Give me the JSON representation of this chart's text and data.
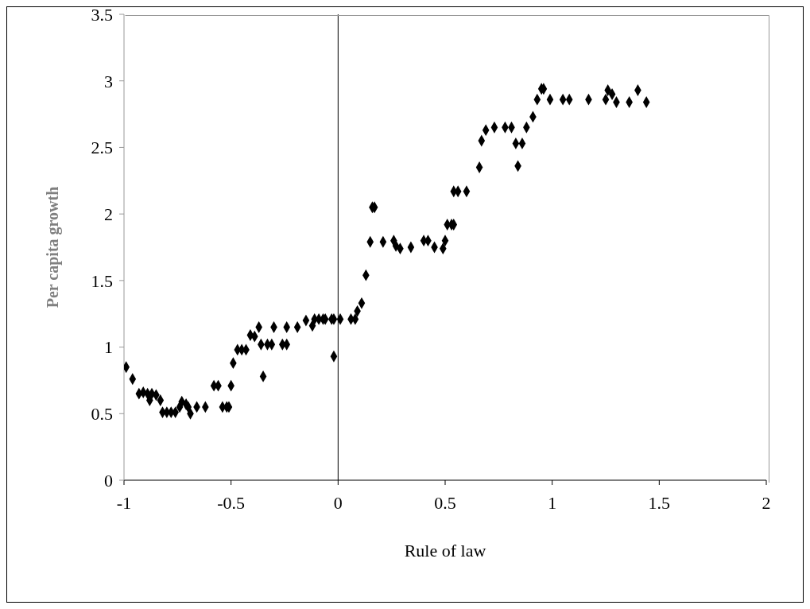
{
  "chart_data": {
    "type": "scatter",
    "xlabel": "Rule of law",
    "ylabel": "Per capita growth",
    "x": [
      -0.99,
      -0.96,
      -0.93,
      -0.91,
      -0.89,
      -0.87,
      -0.88,
      -0.85,
      -0.83,
      -0.82,
      -0.8,
      -0.78,
      -0.76,
      -0.74,
      -0.73,
      -0.71,
      -0.7,
      -0.69,
      -0.66,
      -0.62,
      -0.58,
      -0.56,
      -0.54,
      -0.52,
      -0.51,
      -0.5,
      -0.49,
      -0.47,
      -0.45,
      -0.43,
      -0.41,
      -0.39,
      -0.37,
      -0.36,
      -0.33,
      -0.31,
      -0.35,
      -0.3,
      -0.26,
      -0.24,
      -0.24,
      -0.19,
      -0.15,
      -0.12,
      -0.11,
      -0.09,
      -0.07,
      -0.06,
      -0.03,
      -0.02,
      -0.02,
      0.01,
      0.06,
      0.08,
      0.09,
      0.11,
      0.13,
      0.15,
      0.16,
      0.17,
      0.21,
      0.26,
      0.27,
      0.29,
      0.34,
      0.4,
      0.42,
      0.45,
      0.49,
      0.5,
      0.51,
      0.53,
      0.54,
      0.54,
      0.56,
      0.6,
      0.66,
      0.67,
      0.69,
      0.73,
      0.78,
      0.81,
      0.83,
      0.86,
      0.84,
      0.88,
      0.91,
      0.93,
      0.95,
      0.96,
      0.99,
      1.05,
      1.08,
      1.17,
      1.25,
      1.26,
      1.28,
      1.3,
      1.36,
      1.4,
      1.44
    ],
    "series": [
      {
        "color": "#000000",
        "values": [
          0.85,
          0.76,
          0.65,
          0.66,
          0.65,
          0.65,
          0.6,
          0.64,
          0.6,
          0.51,
          0.51,
          0.51,
          0.51,
          0.55,
          0.59,
          0.57,
          0.55,
          0.5,
          0.55,
          0.55,
          0.71,
          0.71,
          0.55,
          0.55,
          0.55,
          0.71,
          0.88,
          0.98,
          0.98,
          0.98,
          1.09,
          1.08,
          1.15,
          1.02,
          1.02,
          1.02,
          0.78,
          1.15,
          1.02,
          1.02,
          1.15,
          1.15,
          1.2,
          1.16,
          1.21,
          1.21,
          1.21,
          1.21,
          1.21,
          1.21,
          0.93,
          1.21,
          1.21,
          1.21,
          1.27,
          1.33,
          1.54,
          1.79,
          2.05,
          2.05,
          1.79,
          1.8,
          1.76,
          1.74,
          1.75,
          1.8,
          1.8,
          1.75,
          1.74,
          1.8,
          1.92,
          1.92,
          1.92,
          2.17,
          2.17,
          2.17,
          2.35,
          2.55,
          2.63,
          2.65,
          2.65,
          2.65,
          2.53,
          2.53,
          2.36,
          2.65,
          2.73,
          2.86,
          2.94,
          2.94,
          2.86,
          2.86,
          2.86,
          2.86,
          2.86,
          2.93,
          2.9,
          2.84,
          2.84,
          2.93,
          2.84
        ]
      }
    ],
    "xlim": [
      -1,
      2
    ],
    "xticks": [
      -1,
      -0.5,
      0,
      0.5,
      1,
      1.5,
      2
    ],
    "ylim": [
      0,
      3.5
    ],
    "yticks": [
      0,
      0.5,
      1,
      1.5,
      2,
      2.5,
      3,
      3.5
    ],
    "ref_lines": [
      {
        "axis": "x",
        "value": 0,
        "color": "#000000"
      }
    ],
    "grid": false,
    "legend": false,
    "marker": "diamond"
  }
}
